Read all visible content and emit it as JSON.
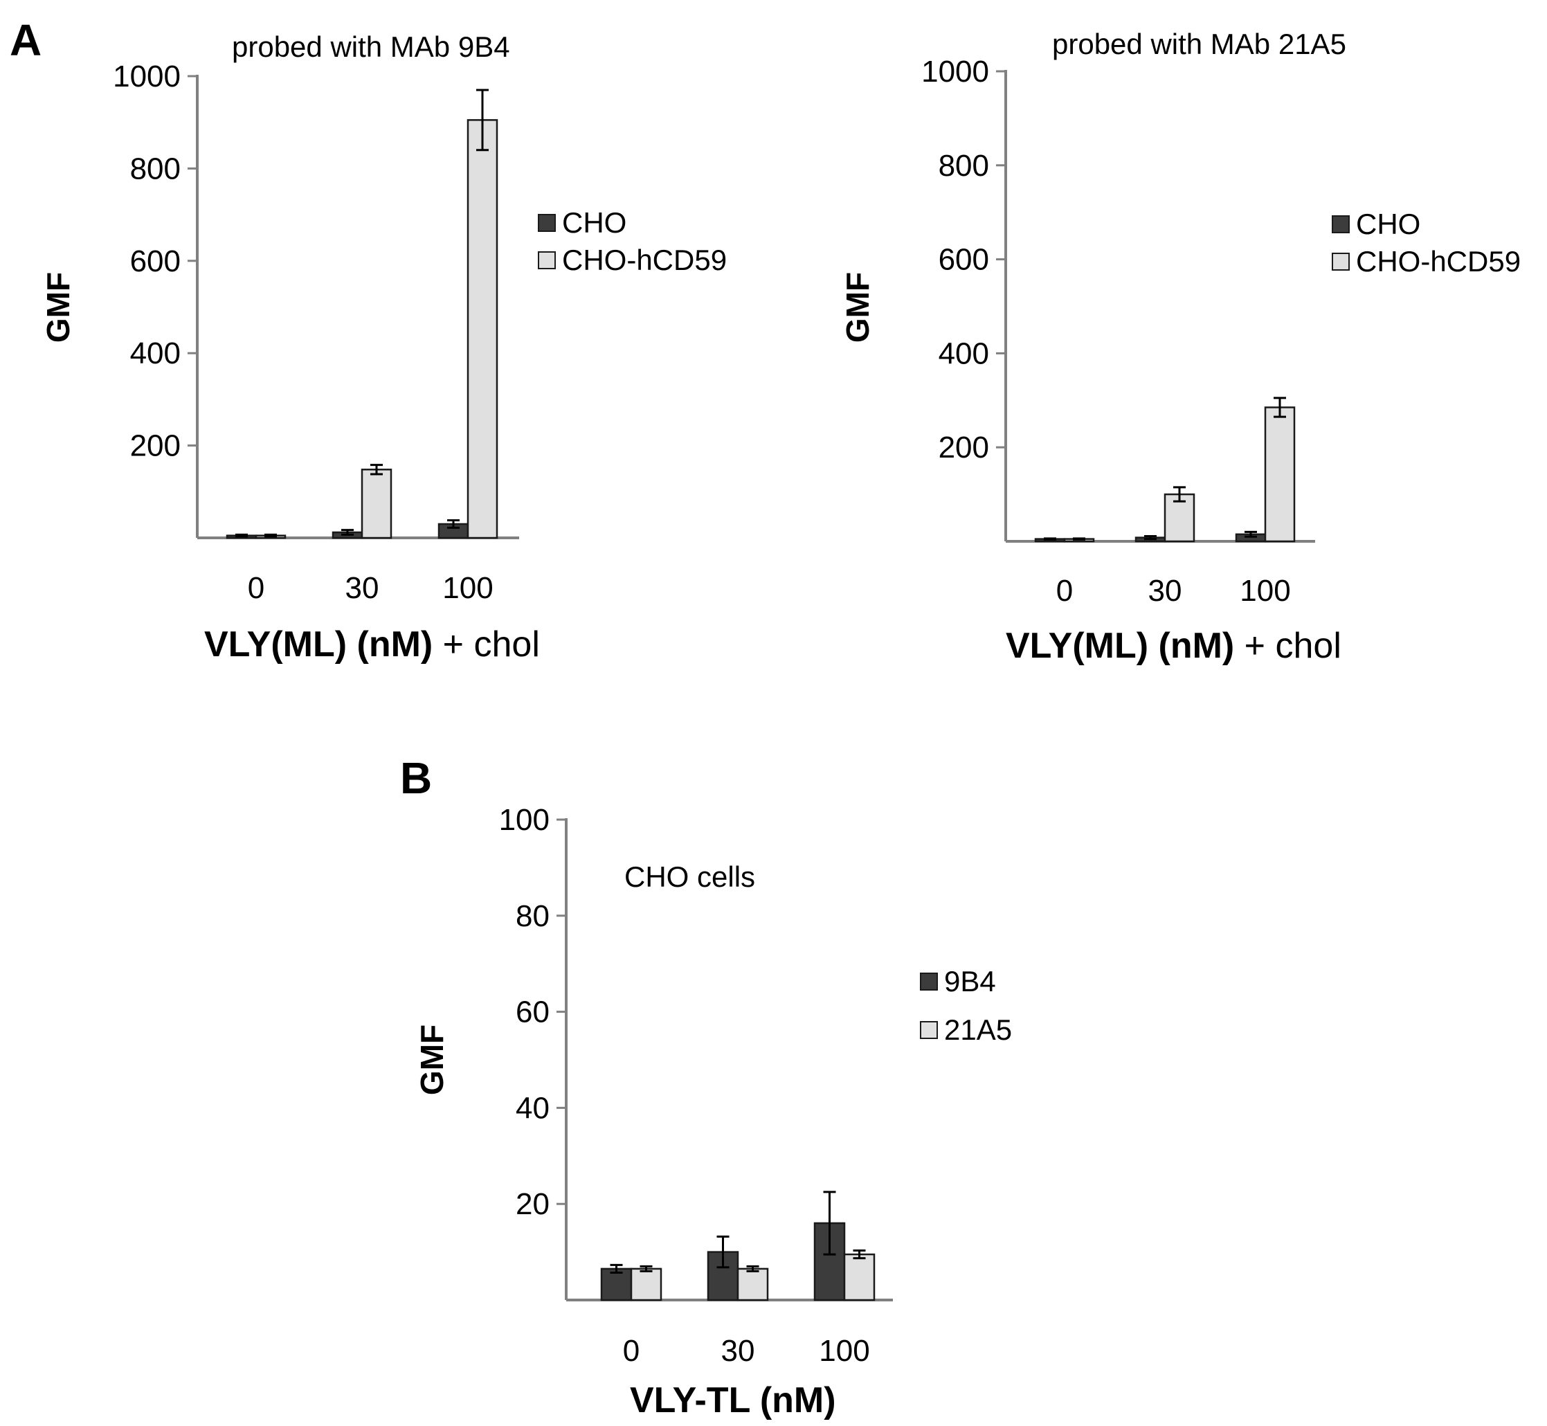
{
  "panels": [
    {
      "label": "A"
    },
    {
      "label": "B"
    }
  ],
  "chart_data": [
    {
      "type": "bar",
      "title": "probed with MAb 9B4",
      "xlabel_bold": "VLY(ML) (nM)",
      "xlabel_rest": " + chol",
      "ylabel": "GMF",
      "ylim": [
        0,
        1000
      ],
      "yticks": [
        "200",
        "400",
        "600",
        "800",
        "1000"
      ],
      "categories": [
        "0",
        "30",
        "100"
      ],
      "legend_position": "right",
      "series": [
        {
          "name": "CHO",
          "color": "#3c3c3c",
          "values": [
            5,
            12,
            30
          ],
          "errors": [
            2,
            5,
            8
          ]
        },
        {
          "name": "CHO-hCD59",
          "color": "#e0e0e0",
          "values": [
            5,
            148,
            905
          ],
          "errors": [
            2,
            10,
            65
          ]
        }
      ]
    },
    {
      "type": "bar",
      "title": "probed with MAb 21A5",
      "xlabel_bold": "VLY(ML) (nM)",
      "xlabel_rest": " + chol",
      "ylabel": "GMF",
      "ylim": [
        0,
        1000
      ],
      "yticks": [
        "200",
        "400",
        "600",
        "800",
        "1000"
      ],
      "categories": [
        "0",
        "30",
        "100"
      ],
      "legend_position": "right",
      "series": [
        {
          "name": "CHO",
          "color": "#3c3c3c",
          "values": [
            5,
            8,
            15
          ],
          "errors": [
            1,
            3,
            5
          ]
        },
        {
          "name": "CHO-hCD59",
          "color": "#e0e0e0",
          "values": [
            5,
            100,
            285
          ],
          "errors": [
            1,
            15,
            20
          ]
        }
      ]
    },
    {
      "type": "bar",
      "title": "",
      "annotation": "CHO cells",
      "xlabel_bold": "VLY-TL (nM)",
      "xlabel_rest": "",
      "ylabel": "GMF",
      "ylim": [
        0,
        100
      ],
      "yticks": [
        "20",
        "40",
        "60",
        "80",
        "100"
      ],
      "categories": [
        "0",
        "30",
        "100"
      ],
      "legend_position": "right",
      "series": [
        {
          "name": "9B4",
          "color": "#3c3c3c",
          "values": [
            6.5,
            10,
            16
          ],
          "errors": [
            0.8,
            3.2,
            6.5
          ]
        },
        {
          "name": "21A5",
          "color": "#e0e0e0",
          "values": [
            6.5,
            6.5,
            9.5
          ],
          "errors": [
            0.5,
            0.5,
            0.8
          ]
        }
      ]
    }
  ]
}
